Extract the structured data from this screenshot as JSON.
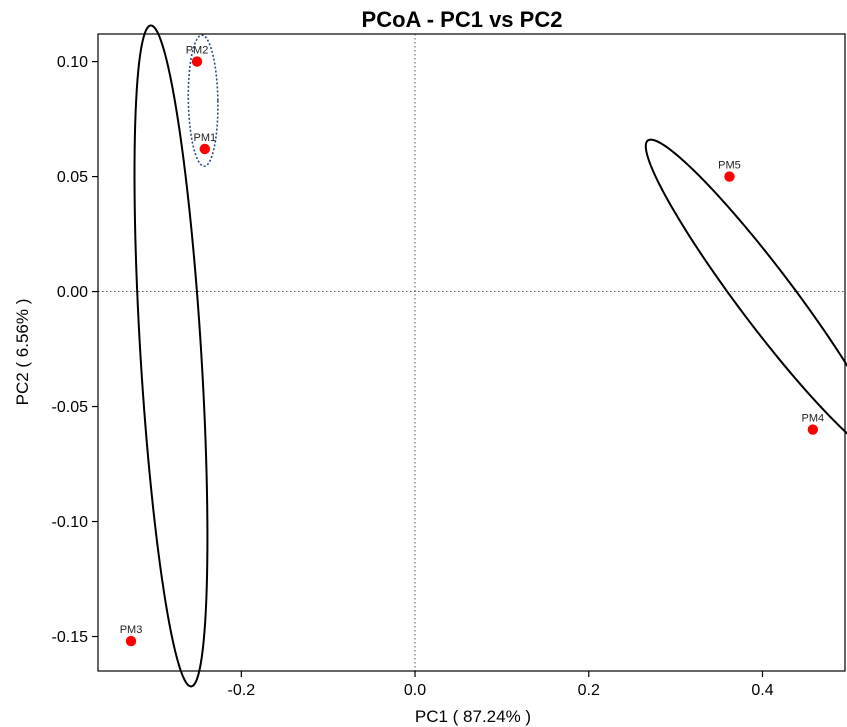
{
  "chart_data": {
    "type": "scatter",
    "title": "PCoA - PC1 vs PC2",
    "xlabel": "PC1 ( 87.24% )",
    "ylabel": "PC2 ( 6.56% )",
    "xlim": [
      -0.365,
      0.495
    ],
    "ylim": [
      -0.165,
      0.112
    ],
    "xticks": [
      -0.2,
      0.0,
      0.2,
      0.4
    ],
    "xtick_labels": [
      "-0.2",
      "0.0",
      "0.2",
      "0.4"
    ],
    "yticks": [
      -0.15,
      -0.1,
      -0.05,
      0.0,
      0.05,
      0.1
    ],
    "ytick_labels": [
      "-0.15",
      "-0.10",
      "-0.05",
      "0.00",
      "0.05",
      "0.10"
    ],
    "reference_lines": {
      "x": 0,
      "y": 0,
      "style": "dotted"
    },
    "point_color": "#ff0000",
    "points": [
      {
        "label": "PM1",
        "x": -0.242,
        "y": 0.062
      },
      {
        "label": "PM2",
        "x": -0.251,
        "y": 0.1
      },
      {
        "label": "PM3",
        "x": -0.327,
        "y": -0.152
      },
      {
        "label": "PM4",
        "x": 0.458,
        "y": -0.06
      },
      {
        "label": "PM5",
        "x": 0.362,
        "y": 0.05
      }
    ],
    "ellipses": [
      {
        "style": "solid",
        "color": "#000000",
        "center": [
          -0.281,
          -0.028
        ],
        "semi_axes": [
          0.035,
          0.144
        ],
        "rotation_deg": 3.5
      },
      {
        "style": "dotted",
        "color": "#2a4a7a",
        "center": [
          -0.244,
          0.083
        ],
        "semi_axes": [
          0.017,
          0.0285
        ],
        "rotation_deg": 1
      },
      {
        "style": "solid",
        "color": "#000000",
        "center": [
          0.405,
          -0.003
        ],
        "semi_axes": [
          0.032,
          0.086
        ],
        "rotation_deg": 37
      }
    ]
  }
}
